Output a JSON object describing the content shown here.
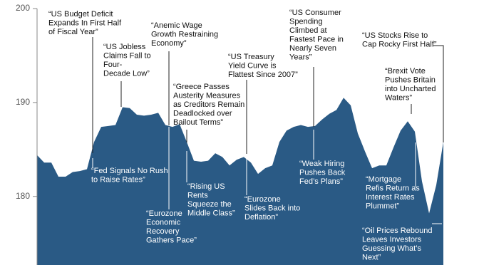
{
  "chart_data": {
    "type": "area",
    "color": "#2a5a85",
    "values": [
      184.4,
      183.6,
      183.6,
      182.1,
      182.1,
      182.6,
      182.7,
      182.9,
      185.8,
      187.4,
      187.5,
      187.6,
      189.5,
      189.4,
      188.7,
      188.6,
      188.7,
      188.9,
      187.6,
      187.4,
      187.7,
      185.8,
      183.8,
      183.7,
      183.8,
      184.6,
      184.2,
      183.3,
      183.9,
      184.2,
      183.6,
      182.4,
      183.0,
      183.3,
      185.8,
      187.0,
      187.4,
      187.6,
      187.4,
      187.5,
      188.2,
      188.8,
      189.2,
      190.5,
      189.7,
      186.7,
      184.8,
      183.0,
      183.3,
      183.3,
      185.2,
      187.0,
      188.0,
      186.9,
      181.6,
      178.2,
      181.2,
      185.8
    ],
    "ylim": [
      172.7,
      200
    ],
    "yticks": [
      180,
      190,
      200
    ],
    "annotations": [
      [
        "“US Budget Deficit",
        "Expands In First Half",
        "of Fiscal Year”"
      ],
      [
        "“US Jobless",
        "Claims Fall to",
        "Four-",
        "Decade Low”"
      ],
      [
        "“Anemic Wage",
        "Growth Restraining",
        "Economy”"
      ],
      [
        "“Greece Passes",
        "Austerity Measures",
        "as Creditors Remain",
        "Deadlocked over",
        "Bailout Terms”"
      ],
      [
        "“US Treasury",
        "Yield Curve is",
        "Flattest Since 2007”"
      ],
      [
        "“US Consumer",
        "Spending",
        "Climbed at",
        "Fastest Pace in",
        "Nearly Seven",
        "Years”"
      ],
      [
        "“US Stocks Rise to",
        "Cap Rocky First Half”"
      ],
      [
        "“Brexit Vote",
        "Pushes Britain",
        "into Uncharted",
        "Waters”"
      ],
      [
        "“Fed Signals No Rush",
        "to Raise Rates”"
      ],
      [
        "“Rising US",
        "Rents",
        "Squeeze the",
        "Middle Class”"
      ],
      [
        "“Eurozone",
        "Economic",
        "Recovery",
        "Gathers Pace”"
      ],
      [
        "“Eurozone",
        "Slides Back into",
        "Deflation”"
      ],
      [
        "“Weak Hiring",
        "Pushes Back",
        "Fed’s Plans”"
      ],
      [
        "“Mortgage",
        "Refis Return as",
        "Interest Rates",
        "Plummet”"
      ],
      [
        "“Oil Prices Rebound",
        "Leaves Investors",
        "Guessing What’s",
        "Next”"
      ]
    ]
  }
}
